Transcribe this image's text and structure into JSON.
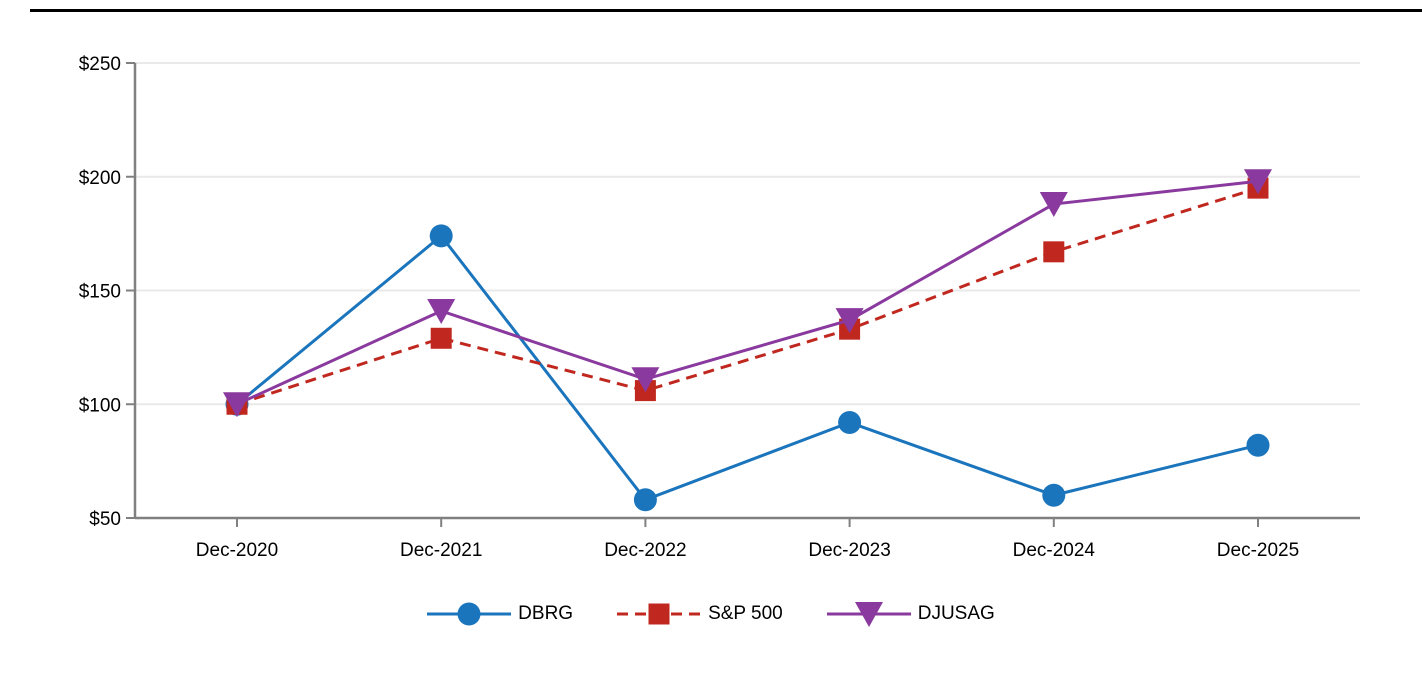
{
  "chart_data": {
    "type": "line",
    "title": "",
    "categories": [
      "Dec-2020",
      "Dec-2021",
      "Dec-2022",
      "Dec-2023",
      "Dec-2024",
      "Dec-2025"
    ],
    "series": [
      {
        "name": "DBRG",
        "color": "#1b75bc",
        "marker": "circle",
        "line_style": "solid",
        "values": [
          100,
          174,
          58,
          92,
          60,
          82
        ]
      },
      {
        "name": "S&P 500",
        "color": "#c0281f",
        "marker": "square",
        "line_style": "dashed",
        "values": [
          100,
          129,
          106,
          133,
          167,
          195
        ]
      },
      {
        "name": "DJUSAG",
        "color": "#8a3a9e",
        "marker": "triangle-down",
        "line_style": "solid",
        "values": [
          100,
          141,
          111,
          137,
          188,
          198
        ]
      }
    ],
    "y_axis": {
      "min": 50,
      "max": 250,
      "tick_values": [
        50,
        100,
        150,
        200,
        250
      ],
      "tick_labels": [
        "$50",
        "$100",
        "$150",
        "$200",
        "$250"
      ]
    },
    "grid": "horizontal",
    "legend_position": "bottom",
    "style": {
      "axis_color": "#808080",
      "gridline_color": "#e9e9e9",
      "text_color": "#000000",
      "background": "#ffffff",
      "top_rule_color": "#000000"
    }
  }
}
